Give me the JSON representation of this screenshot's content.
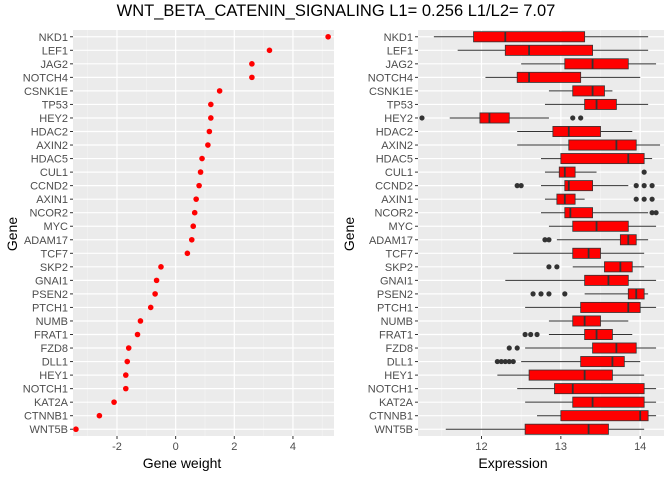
{
  "title": "WNT_BETA_CATENIN_SIGNALING L1= 0.256 L1/L2= 7.07",
  "chart_data": [
    {
      "type": "scatter",
      "xlabel": "Gene weight",
      "ylabel": "Gene",
      "xlim": [
        -3.5,
        5.4
      ],
      "xticks": [
        -2,
        0,
        2,
        4
      ],
      "grid": true,
      "point_color": "#ff0000",
      "genes": [
        "NKD1",
        "LEF1",
        "JAG2",
        "NOTCH4",
        "CSNK1E",
        "TP53",
        "HEY2",
        "HDAC2",
        "AXIN2",
        "HDAC5",
        "CUL1",
        "CCND2",
        "AXIN1",
        "NCOR2",
        "MYC",
        "ADAM17",
        "TCF7",
        "SKP2",
        "GNAI1",
        "PSEN2",
        "PTCH1",
        "NUMB",
        "FRAT1",
        "FZD8",
        "DLL1",
        "HEY1",
        "NOTCH1",
        "KAT2A",
        "CTNNB1",
        "WNT5B"
      ],
      "values": [
        5.2,
        3.2,
        2.6,
        2.6,
        1.5,
        1.2,
        1.2,
        1.15,
        1.1,
        0.9,
        0.85,
        0.8,
        0.7,
        0.65,
        0.6,
        0.55,
        0.4,
        -0.5,
        -0.65,
        -0.7,
        -0.85,
        -1.2,
        -1.3,
        -1.6,
        -1.65,
        -1.7,
        -1.7,
        -2.1,
        -2.6,
        -3.4
      ]
    },
    {
      "type": "box",
      "xlabel": "Expression",
      "ylabel": "Gene",
      "xlim": [
        11.2,
        14.3
      ],
      "xticks": [
        12,
        13,
        14
      ],
      "grid": true,
      "box_color": "#ff0000",
      "genes": [
        "NKD1",
        "LEF1",
        "JAG2",
        "NOTCH4",
        "CSNK1E",
        "TP53",
        "HEY2",
        "HDAC2",
        "AXIN2",
        "HDAC5",
        "CUL1",
        "CCND2",
        "AXIN1",
        "NCOR2",
        "MYC",
        "ADAM17",
        "TCF7",
        "SKP2",
        "GNAI1",
        "PSEN2",
        "PTCH1",
        "NUMB",
        "FRAT1",
        "FZD8",
        "DLL1",
        "HEY1",
        "NOTCH1",
        "KAT2A",
        "CTNNB1",
        "WNT5B"
      ],
      "boxes": [
        {
          "whislo": 11.4,
          "q1": 11.9,
          "med": 12.3,
          "q3": 13.3,
          "whishi": 14.1,
          "outliers": []
        },
        {
          "whislo": 11.7,
          "q1": 12.3,
          "med": 12.6,
          "q3": 13.4,
          "whishi": 14.1,
          "outliers": []
        },
        {
          "whislo": 12.5,
          "q1": 13.05,
          "med": 13.4,
          "q3": 13.85,
          "whishi": 14.2,
          "outliers": []
        },
        {
          "whislo": 12.05,
          "q1": 12.45,
          "med": 12.6,
          "q3": 13.25,
          "whishi": 14.0,
          "outliers": []
        },
        {
          "whislo": 12.85,
          "q1": 13.15,
          "med": 13.4,
          "q3": 13.55,
          "whishi": 13.65,
          "outliers": []
        },
        {
          "whislo": 12.8,
          "q1": 13.3,
          "med": 13.45,
          "q3": 13.7,
          "whishi": 14.1,
          "outliers": []
        },
        {
          "whislo": 11.6,
          "q1": 11.98,
          "med": 12.1,
          "q3": 12.35,
          "whishi": 12.85,
          "outliers": [
            11.25,
            13.15,
            13.25
          ]
        },
        {
          "whislo": 12.45,
          "q1": 12.9,
          "med": 13.1,
          "q3": 13.5,
          "whishi": 13.9,
          "outliers": []
        },
        {
          "whislo": 12.45,
          "q1": 13.1,
          "med": 13.7,
          "q3": 13.95,
          "whishi": 14.25,
          "outliers": []
        },
        {
          "whislo": 12.75,
          "q1": 13.0,
          "med": 13.85,
          "q3": 14.05,
          "whishi": 14.15,
          "outliers": []
        },
        {
          "whislo": 12.8,
          "q1": 12.98,
          "med": 13.05,
          "q3": 13.18,
          "whishi": 13.45,
          "outliers": [
            14.05
          ]
        },
        {
          "whislo": 12.75,
          "q1": 13.05,
          "med": 13.1,
          "q3": 13.4,
          "whishi": 13.85,
          "outliers": [
            12.45,
            12.5,
            13.95,
            14.05,
            14.15
          ]
        },
        {
          "whislo": 12.8,
          "q1": 12.95,
          "med": 13.05,
          "q3": 13.18,
          "whishi": 13.3,
          "outliers": [
            13.95,
            14.05,
            14.15
          ]
        },
        {
          "whislo": 12.75,
          "q1": 13.05,
          "med": 13.12,
          "q3": 13.4,
          "whishi": 14.1,
          "outliers": [
            14.15,
            14.2
          ]
        },
        {
          "whislo": 12.85,
          "q1": 13.15,
          "med": 13.45,
          "q3": 13.85,
          "whishi": 14.2,
          "outliers": []
        },
        {
          "whislo": 12.95,
          "q1": 13.75,
          "med": 13.85,
          "q3": 13.95,
          "whishi": 14.1,
          "outliers": [
            12.8,
            12.85
          ]
        },
        {
          "whislo": 12.4,
          "q1": 13.15,
          "med": 13.35,
          "q3": 13.5,
          "whishi": 14.05,
          "outliers": []
        },
        {
          "whislo": 13.15,
          "q1": 13.55,
          "med": 13.75,
          "q3": 13.9,
          "whishi": 14.05,
          "outliers": [
            12.85,
            12.95
          ]
        },
        {
          "whislo": 12.3,
          "q1": 13.3,
          "med": 13.6,
          "q3": 13.85,
          "whishi": 14.2,
          "outliers": []
        },
        {
          "whislo": 13.3,
          "q1": 13.85,
          "med": 13.95,
          "q3": 14.05,
          "whishi": 14.1,
          "outliers": [
            12.65,
            12.75,
            12.85,
            13.05
          ]
        },
        {
          "whislo": 12.55,
          "q1": 13.25,
          "med": 13.85,
          "q3": 14.0,
          "whishi": 14.2,
          "outliers": []
        },
        {
          "whislo": 12.85,
          "q1": 13.15,
          "med": 13.3,
          "q3": 13.5,
          "whishi": 13.85,
          "outliers": []
        },
        {
          "whislo": 12.85,
          "q1": 13.3,
          "med": 13.45,
          "q3": 13.65,
          "whishi": 13.9,
          "outliers": [
            12.55,
            12.62,
            12.7
          ]
        },
        {
          "whislo": 12.55,
          "q1": 13.4,
          "med": 13.7,
          "q3": 13.95,
          "whishi": 14.2,
          "outliers": [
            12.35,
            12.45
          ]
        },
        {
          "whislo": 12.5,
          "q1": 13.25,
          "med": 13.65,
          "q3": 13.8,
          "whishi": 14.0,
          "outliers": [
            12.2,
            12.25,
            12.3,
            12.35,
            12.4
          ]
        },
        {
          "whislo": 12.2,
          "q1": 12.6,
          "med": 13.3,
          "q3": 13.65,
          "whishi": 14.05,
          "outliers": []
        },
        {
          "whislo": 12.45,
          "q1": 12.92,
          "med": 13.15,
          "q3": 14.05,
          "whishi": 14.2,
          "outliers": []
        },
        {
          "whislo": 12.55,
          "q1": 13.15,
          "med": 13.4,
          "q3": 14.05,
          "whishi": 14.2,
          "outliers": []
        },
        {
          "whislo": 12.7,
          "q1": 13.0,
          "med": 14.0,
          "q3": 14.1,
          "whishi": 14.2,
          "outliers": []
        },
        {
          "whislo": 11.55,
          "q1": 12.55,
          "med": 13.35,
          "q3": 13.6,
          "whishi": 14.05,
          "outliers": []
        }
      ]
    }
  ]
}
